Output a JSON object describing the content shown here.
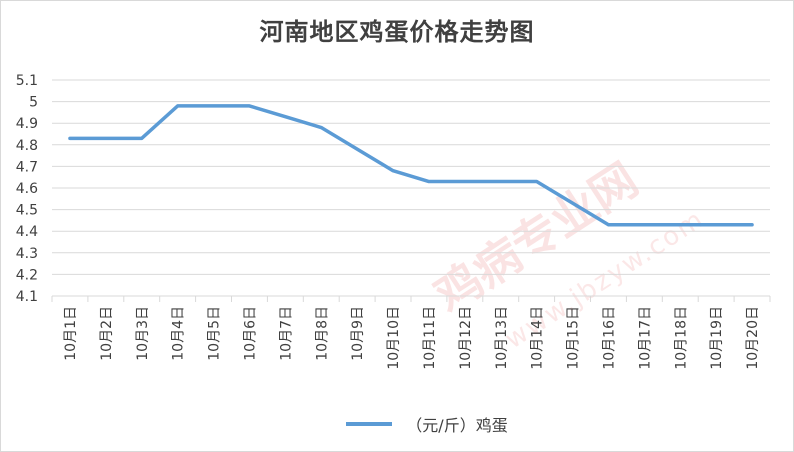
{
  "colors": {
    "line": "#5b9bd5",
    "grid": "#d9d9d9",
    "text": "#404040",
    "watermark": "#dc3c3c"
  },
  "chart_data": {
    "type": "line",
    "title": "河南地区鸡蛋价格走势图",
    "xlabel": "",
    "ylabel": "",
    "categories": [
      "10月1日",
      "10月2日",
      "10月3日",
      "10月4日",
      "10月5日",
      "10月6日",
      "10月7日",
      "10月8日",
      "10月9日",
      "10月10日",
      "10月11日",
      "10月12日",
      "10月13日",
      "10月14日",
      "10月15日",
      "10月16日",
      "10月17日",
      "10月18日",
      "10月19日",
      "10月20日"
    ],
    "series": [
      {
        "name": "（元/斤）鸡蛋",
        "values": [
          4.83,
          4.83,
          4.83,
          4.98,
          4.98,
          4.98,
          4.93,
          4.88,
          4.78,
          4.68,
          4.63,
          4.63,
          4.63,
          4.63,
          4.53,
          4.43,
          4.43,
          4.43,
          4.43,
          4.43
        ]
      }
    ],
    "ylim": [
      4.1,
      5.1
    ],
    "yticks": [
      "4.1",
      "4.2",
      "4.3",
      "4.4",
      "4.5",
      "4.6",
      "4.7",
      "4.8",
      "4.9",
      "5",
      "5.1"
    ],
    "grid": true,
    "legend_position": "bottom"
  },
  "watermark": {
    "main": "鸡病专业网",
    "sub": "www.jbzyw.com"
  }
}
